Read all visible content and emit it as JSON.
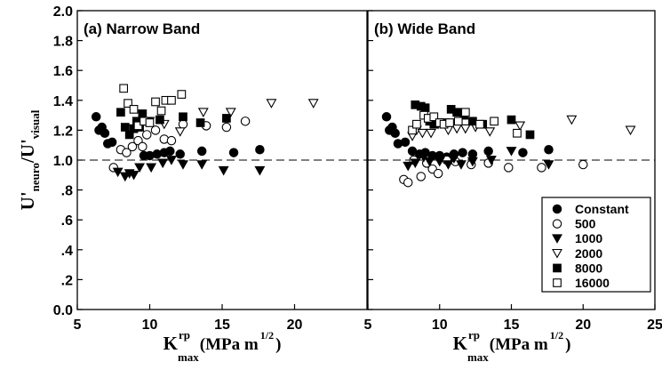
{
  "chart_data": {
    "type": "scatter",
    "ylabel": {
      "main": "U'",
      "sub_num": "neuro",
      "slash": "/U'",
      "sub_den": "visual"
    },
    "xlabel": {
      "main": "K",
      "sup": "rp",
      "sub": "max",
      "rest": "(MPa m",
      "exp": "1/2",
      "close": ")"
    },
    "ylim": [
      0.0,
      2.0
    ],
    "y_ticks": [
      "0.0",
      ".2",
      ".4",
      ".6",
      ".8",
      "1.0",
      "1.2",
      "1.4",
      "1.6",
      "1.8",
      "2.0"
    ],
    "reference_line": {
      "y": 1.0,
      "style": "dashed"
    },
    "legend": {
      "placement": "bottom-right of panel (b)",
      "entries": [
        "Constant",
        "500",
        "1000",
        "2000",
        "8000",
        "16000"
      ]
    },
    "series_styles": {
      "Constant": {
        "marker": "circle",
        "filled": true
      },
      "500": {
        "marker": "circle",
        "filled": false
      },
      "1000": {
        "marker": "triangle-down",
        "filled": true
      },
      "2000": {
        "marker": "triangle-down",
        "filled": false
      },
      "8000": {
        "marker": "square",
        "filled": true
      },
      "16000": {
        "marker": "square",
        "filled": false
      }
    },
    "panels": [
      {
        "title": "(a) Narrow Band",
        "xlim": [
          5,
          25
        ],
        "x_ticks": [
          "5",
          "10",
          "15",
          "20"
        ],
        "series": [
          {
            "name": "Constant",
            "points": [
              [
                6.3,
                1.29
              ],
              [
                6.5,
                1.2
              ],
              [
                6.7,
                1.22
              ],
              [
                6.9,
                1.18
              ],
              [
                7.1,
                1.11
              ],
              [
                7.4,
                1.12
              ],
              [
                9.6,
                1.03
              ],
              [
                10.0,
                1.03
              ],
              [
                10.5,
                1.04
              ],
              [
                11.0,
                1.05
              ],
              [
                11.4,
                1.06
              ],
              [
                12.1,
                1.04
              ],
              [
                13.6,
                1.06
              ],
              [
                15.8,
                1.05
              ],
              [
                17.6,
                1.07
              ]
            ]
          },
          {
            "name": "500",
            "points": [
              [
                7.5,
                0.95
              ],
              [
                8.0,
                1.07
              ],
              [
                8.4,
                1.05
              ],
              [
                8.8,
                1.09
              ],
              [
                9.2,
                1.13
              ],
              [
                9.5,
                1.09
              ],
              [
                9.8,
                1.17
              ],
              [
                10.4,
                1.2
              ],
              [
                11.0,
                1.14
              ],
              [
                11.5,
                1.13
              ],
              [
                12.3,
                1.24
              ],
              [
                13.9,
                1.23
              ],
              [
                15.3,
                1.22
              ],
              [
                16.6,
                1.26
              ]
            ]
          },
          {
            "name": "1000",
            "points": [
              [
                7.8,
                0.92
              ],
              [
                8.3,
                0.89
              ],
              [
                8.6,
                0.91
              ],
              [
                8.9,
                0.9
              ],
              [
                9.3,
                0.95
              ],
              [
                10.1,
                0.95
              ],
              [
                10.9,
                0.98
              ],
              [
                11.5,
                1.0
              ],
              [
                12.3,
                0.97
              ],
              [
                13.6,
                0.97
              ],
              [
                15.1,
                0.93
              ],
              [
                17.6,
                0.93
              ]
            ]
          },
          {
            "name": "2000",
            "points": [
              [
                8.6,
                1.21
              ],
              [
                9.4,
                1.25
              ],
              [
                10.0,
                1.26
              ],
              [
                11.0,
                1.24
              ],
              [
                12.1,
                1.19
              ],
              [
                13.7,
                1.32
              ],
              [
                15.6,
                1.32
              ],
              [
                18.4,
                1.38
              ],
              [
                21.3,
                1.38
              ]
            ]
          },
          {
            "name": "8000",
            "points": [
              [
                8.0,
                1.32
              ],
              [
                8.3,
                1.22
              ],
              [
                8.6,
                1.17
              ],
              [
                8.9,
                1.21
              ],
              [
                9.1,
                1.26
              ],
              [
                9.3,
                1.22
              ],
              [
                9.5,
                1.31
              ],
              [
                9.9,
                1.26
              ],
              [
                10.7,
                1.27
              ],
              [
                12.3,
                1.29
              ],
              [
                13.5,
                1.25
              ],
              [
                15.3,
                1.28
              ]
            ]
          },
          {
            "name": "16000",
            "points": [
              [
                8.2,
                1.48
              ],
              [
                8.5,
                1.38
              ],
              [
                8.9,
                1.34
              ],
              [
                9.2,
                1.23
              ],
              [
                9.6,
                1.26
              ],
              [
                10.0,
                1.25
              ],
              [
                10.4,
                1.39
              ],
              [
                10.8,
                1.33
              ],
              [
                11.1,
                1.4
              ],
              [
                11.5,
                1.4
              ],
              [
                12.2,
                1.44
              ]
            ]
          }
        ]
      },
      {
        "title": "(b) Wide Band",
        "xlim": [
          5,
          25
        ],
        "x_ticks": [
          "5",
          "10",
          "15",
          "20",
          "25"
        ],
        "series": [
          {
            "name": "Constant",
            "points": [
              [
                6.3,
                1.29
              ],
              [
                6.5,
                1.2
              ],
              [
                6.7,
                1.22
              ],
              [
                6.9,
                1.18
              ],
              [
                7.1,
                1.11
              ],
              [
                7.6,
                1.12
              ],
              [
                8.1,
                1.06
              ],
              [
                8.6,
                1.04
              ],
              [
                9.0,
                1.05
              ],
              [
                9.5,
                1.03
              ],
              [
                10.0,
                1.03
              ],
              [
                10.5,
                1.02
              ],
              [
                11.0,
                1.04
              ],
              [
                11.6,
                1.05
              ],
              [
                12.3,
                1.04
              ],
              [
                13.4,
                1.06
              ],
              [
                15.8,
                1.05
              ],
              [
                17.6,
                1.07
              ]
            ]
          },
          {
            "name": "500",
            "points": [
              [
                7.5,
                0.87
              ],
              [
                7.8,
                0.85
              ],
              [
                8.2,
                1.0
              ],
              [
                8.7,
                0.89
              ],
              [
                9.1,
                0.98
              ],
              [
                9.5,
                0.94
              ],
              [
                9.9,
                0.91
              ],
              [
                10.5,
                1.0
              ],
              [
                11.1,
                0.99
              ],
              [
                12.2,
                0.97
              ],
              [
                13.4,
                0.98
              ],
              [
                14.8,
                0.95
              ],
              [
                17.1,
                0.95
              ],
              [
                20.0,
                0.97
              ]
            ]
          },
          {
            "name": "1000",
            "points": [
              [
                7.8,
                0.96
              ],
              [
                8.3,
                0.98
              ],
              [
                8.9,
                1.02
              ],
              [
                9.3,
                0.99
              ],
              [
                10.0,
                0.99
              ],
              [
                10.6,
                0.97
              ],
              [
                11.0,
                1.01
              ],
              [
                11.5,
                0.97
              ],
              [
                12.3,
                0.99
              ],
              [
                13.6,
                1.0
              ],
              [
                15.0,
                1.06
              ],
              [
                17.6,
                0.97
              ]
            ]
          },
          {
            "name": "2000",
            "points": [
              [
                8.1,
                1.16
              ],
              [
                8.4,
                1.2
              ],
              [
                8.8,
                1.18
              ],
              [
                9.4,
                1.18
              ],
              [
                9.9,
                1.24
              ],
              [
                10.6,
                1.2
              ],
              [
                11.2,
                1.21
              ],
              [
                11.8,
                1.21
              ],
              [
                12.5,
                1.22
              ],
              [
                13.5,
                1.19
              ],
              [
                15.6,
                1.23
              ],
              [
                19.2,
                1.27
              ],
              [
                23.3,
                1.2
              ]
            ]
          },
          {
            "name": "8000",
            "points": [
              [
                8.3,
                1.37
              ],
              [
                8.7,
                1.36
              ],
              [
                9.0,
                1.35
              ],
              [
                9.3,
                1.26
              ],
              [
                9.6,
                1.24
              ],
              [
                10.0,
                1.25
              ],
              [
                10.4,
                1.25
              ],
              [
                10.8,
                1.34
              ],
              [
                11.2,
                1.32
              ],
              [
                11.7,
                1.3
              ],
              [
                12.3,
                1.26
              ],
              [
                13.0,
                1.24
              ],
              [
                15.0,
                1.27
              ],
              [
                16.3,
                1.17
              ]
            ]
          },
          {
            "name": "16000",
            "points": [
              [
                8.1,
                1.2
              ],
              [
                8.4,
                1.24
              ],
              [
                8.9,
                1.3
              ],
              [
                9.2,
                1.28
              ],
              [
                9.6,
                1.29
              ],
              [
                10.0,
                1.25
              ],
              [
                10.3,
                1.24
              ],
              [
                10.7,
                1.25
              ],
              [
                11.3,
                1.26
              ],
              [
                11.8,
                1.32
              ],
              [
                12.8,
                1.24
              ],
              [
                13.8,
                1.26
              ],
              [
                15.4,
                1.18
              ]
            ]
          }
        ]
      }
    ]
  }
}
